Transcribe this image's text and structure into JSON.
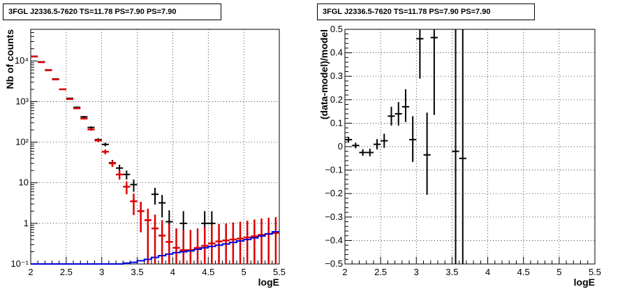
{
  "chart_data": [
    {
      "type": "scatter",
      "title": "3FGL J2336.5-7620 TS=11.78 PS=7.90 PS=7.90",
      "xlabel": "logE",
      "ylabel": "Nb of counts",
      "xlim": [
        2,
        5.5
      ],
      "ylim": [
        0.1,
        60000
      ],
      "yscale": "log",
      "grid": true,
      "xticks": [
        "2",
        "2.5",
        "3",
        "3.5",
        "4",
        "4.5",
        "5",
        "5.5"
      ],
      "yticks": [
        "10⁻¹",
        "1",
        "10",
        "10²",
        "10³",
        "10⁴"
      ],
      "series": [
        {
          "color": "#000000",
          "marker": "data",
          "x": [
            2.05,
            2.15,
            2.25,
            2.35,
            2.45,
            2.55,
            2.65,
            2.75,
            2.85,
            2.95,
            3.05,
            3.15,
            3.25,
            3.35,
            3.45,
            3.75,
            3.85,
            3.95,
            4.15,
            4.45,
            4.55
          ],
          "y": [
            13000,
            9500,
            6000,
            3600,
            2000,
            1200,
            720,
            420,
            230,
            115,
            88,
            31,
            23,
            16,
            9,
            5.2,
            3.2,
            1.1,
            1,
            1,
            1
          ],
          "yerr_low": [
            114,
            97,
            77,
            60,
            45,
            35,
            27,
            20,
            15,
            11,
            9,
            5.5,
            4.8,
            4,
            3,
            2.3,
            1.8,
            1,
            1,
            1,
            1
          ],
          "yerr_high": [
            114,
            97,
            77,
            60,
            45,
            35,
            27,
            20,
            15,
            11,
            9,
            5.5,
            4.8,
            4,
            3,
            2.3,
            1.8,
            1,
            1,
            1,
            1
          ]
        },
        {
          "color": "#dd0000",
          "marker": "model",
          "x": [
            2.05,
            2.15,
            2.25,
            2.35,
            2.45,
            2.55,
            2.65,
            2.75,
            2.85,
            2.95,
            3.05,
            3.15,
            3.25,
            3.35,
            3.45,
            3.55,
            3.65,
            3.75,
            3.85,
            3.95,
            4.05,
            4.15,
            4.25,
            4.35,
            4.45,
            4.55,
            4.65,
            4.75,
            4.85,
            4.95,
            5.05,
            5.15,
            5.25,
            5.35,
            5.45
          ],
          "y": [
            12800,
            9300,
            5900,
            3500,
            2000,
            1150,
            680,
            380,
            205,
            110,
            58,
            30,
            16,
            8,
            3.5,
            2,
            1.2,
            0.75,
            0.5,
            0.35,
            0.25,
            0.22,
            0.22,
            0.25,
            0.28,
            0.32,
            0.36,
            0.38,
            0.4,
            0.42,
            0.45,
            0.48,
            0.52,
            0.55,
            0.58
          ],
          "yerr_low": [
            113,
            96,
            77,
            59,
            45,
            34,
            26,
            19,
            14,
            10,
            7.6,
            5.5,
            4,
            2.8,
            1.9,
            1.4,
            1.1,
            0.65,
            0.4,
            0.25,
            0.15,
            0.12,
            0.12,
            0.15,
            0.18,
            0.22,
            0.26,
            0.28,
            0.3,
            0.32,
            0.35,
            0.38,
            0.42,
            0.45,
            0.48
          ],
          "yerr_high": [
            113,
            96,
            77,
            59,
            45,
            34,
            26,
            19,
            14,
            10,
            7.6,
            5.5,
            4,
            2.8,
            1.9,
            1.4,
            1.1,
            0.9,
            0.7,
            0.6,
            0.5,
            0.47,
            0.47,
            0.5,
            0.53,
            0.57,
            0.6,
            0.62,
            0.65,
            0.68,
            0.72,
            0.76,
            0.8,
            0.82,
            0.85
          ]
        },
        {
          "color": "#0000dd",
          "marker": "step",
          "x": [
            2.0,
            2.1,
            2.2,
            2.3,
            2.4,
            2.5,
            2.6,
            2.7,
            2.8,
            2.9,
            3.0,
            3.1,
            3.2,
            3.3,
            3.4,
            3.5,
            3.6,
            3.7,
            3.8,
            3.9,
            4.0,
            4.1,
            4.2,
            4.3,
            4.4,
            4.5,
            4.6,
            4.7,
            4.8,
            4.9,
            5.0,
            5.1,
            5.2,
            5.3,
            5.4
          ],
          "y": [
            0.1,
            0.1,
            0.1,
            0.1,
            0.1,
            0.1,
            0.1,
            0.1,
            0.1,
            0.1,
            0.1,
            0.1,
            0.1,
            0.105,
            0.11,
            0.12,
            0.13,
            0.145,
            0.16,
            0.175,
            0.19,
            0.2,
            0.21,
            0.23,
            0.25,
            0.27,
            0.29,
            0.31,
            0.34,
            0.37,
            0.4,
            0.44,
            0.49,
            0.55,
            0.62
          ]
        }
      ]
    },
    {
      "type": "scatter",
      "title": "3FGL J2336.5-7620 TS=11.78 PS=7.90 PS=7.90",
      "xlabel": "logE",
      "ylabel": "(data-model)/model",
      "xlim": [
        2,
        5.5
      ],
      "ylim": [
        -0.5,
        0.5
      ],
      "grid": true,
      "xticks": [
        "2",
        "2.5",
        "3",
        "3.5",
        "4",
        "4.5",
        "5",
        "5.5"
      ],
      "yticks": [
        "−0.5",
        "−0.4",
        "−0.3",
        "−0.2",
        "−0.1",
        "0",
        "0.1",
        "0.2",
        "0.3",
        "0.4",
        "0.5"
      ],
      "series": [
        {
          "color": "#000000",
          "x": [
            2.05,
            2.15,
            2.25,
            2.35,
            2.45,
            2.55,
            2.65,
            2.75,
            2.85,
            2.95,
            3.05,
            3.15,
            3.25,
            3.55,
            3.65
          ],
          "y": [
            0.03,
            0.005,
            -0.025,
            -0.025,
            0.01,
            0.025,
            0.13,
            0.14,
            0.17,
            0.03,
            0.46,
            -0.035,
            0.465,
            -0.02,
            -0.05
          ],
          "yerr_low": [
            0.012,
            0.012,
            0.014,
            0.016,
            0.022,
            0.03,
            0.04,
            0.05,
            0.065,
            0.095,
            0.17,
            0.17,
            0.33,
            0.5,
            0.5
          ],
          "yerr_high": [
            0.012,
            0.012,
            0.014,
            0.016,
            0.022,
            0.03,
            0.04,
            0.05,
            0.075,
            0.1,
            0.2,
            0.18,
            0.35,
            0.55,
            0.55
          ]
        }
      ]
    }
  ]
}
